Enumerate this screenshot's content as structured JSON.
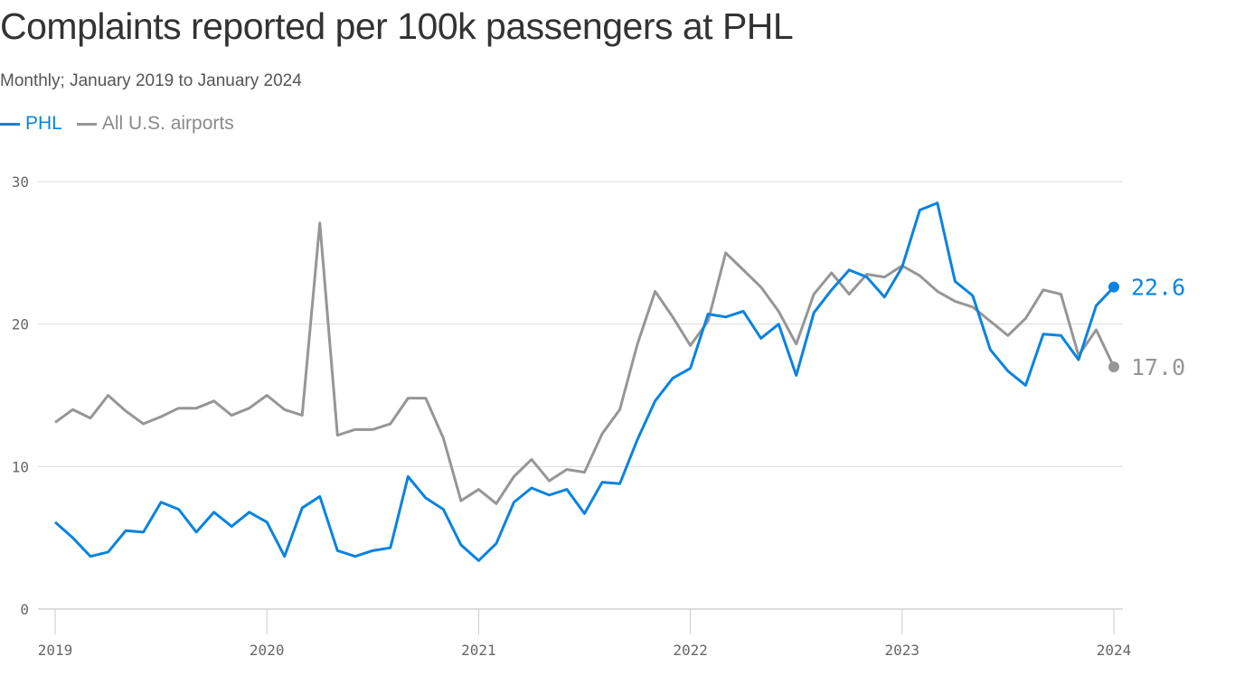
{
  "chart_data": {
    "type": "line",
    "title": "Complaints reported per 100k passengers at PHL",
    "subtitle": "Monthly; January 2019 to January 2024",
    "x_start": "2019-01",
    "x_end": "2024-01",
    "x_ticks": [
      "2019",
      "2020",
      "2021",
      "2022",
      "2023",
      "2024"
    ],
    "y_ticks": [
      0,
      10,
      20,
      30
    ],
    "ylim": [
      0,
      30
    ],
    "grid": "horizontal",
    "legend": "top-left",
    "series": [
      {
        "name": "PHL",
        "color": "#0a83e0",
        "end_label": "22.6",
        "values": [
          6.1,
          5.0,
          3.7,
          4.0,
          5.5,
          5.4,
          7.5,
          7.0,
          5.4,
          6.8,
          5.8,
          6.8,
          6.1,
          3.7,
          7.1,
          7.9,
          4.1,
          3.7,
          4.1,
          4.3,
          9.3,
          7.8,
          7.0,
          4.5,
          3.4,
          4.6,
          7.5,
          8.5,
          8.0,
          8.4,
          6.7,
          8.9,
          8.8,
          11.9,
          14.6,
          16.2,
          16.9,
          20.7,
          20.5,
          20.9,
          19.0,
          20.0,
          16.4,
          20.8,
          22.4,
          23.8,
          23.3,
          21.9,
          24.0,
          28.0,
          28.5,
          23.0,
          22.0,
          18.2,
          16.7,
          15.7,
          19.3,
          19.2,
          17.5,
          21.3,
          22.6
        ]
      },
      {
        "name": "All U.S. airports",
        "color": "#969696",
        "end_label": "17.0",
        "values": [
          13.1,
          14.0,
          13.4,
          15.0,
          13.9,
          13.0,
          13.5,
          14.1,
          14.1,
          14.6,
          13.6,
          14.1,
          15.0,
          14.0,
          13.6,
          27.1,
          12.2,
          12.6,
          12.6,
          13.0,
          14.8,
          14.8,
          12.0,
          7.6,
          8.4,
          7.4,
          9.3,
          10.5,
          9.0,
          9.8,
          9.6,
          12.3,
          14.0,
          18.6,
          22.3,
          20.5,
          18.5,
          20.2,
          25.0,
          23.8,
          22.6,
          20.9,
          18.6,
          22.1,
          23.6,
          22.1,
          23.5,
          23.3,
          24.1,
          23.4,
          22.3,
          21.6,
          21.2,
          20.2,
          19.2,
          20.4,
          22.4,
          22.1,
          17.8,
          19.6,
          17.0
        ]
      }
    ]
  }
}
